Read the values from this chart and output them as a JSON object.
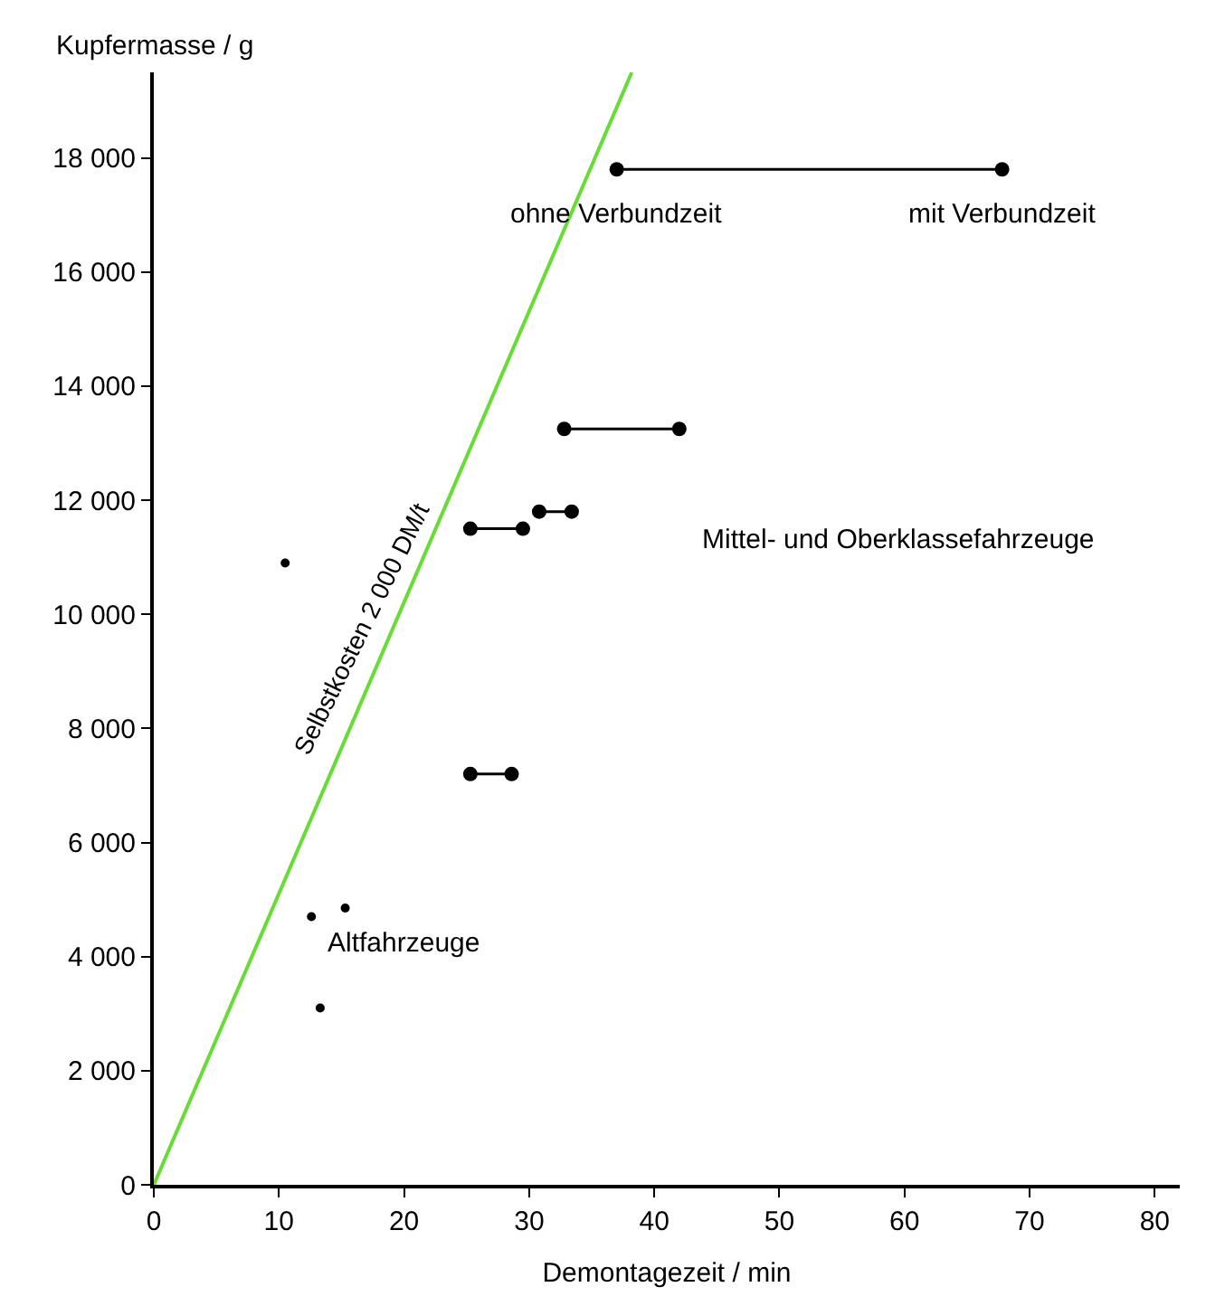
{
  "chart_data": {
    "type": "line",
    "xlabel": "Demontagezeit / min",
    "ylabel": "Kupfermasse / g",
    "xlim": [
      0,
      82
    ],
    "xticks": [
      0,
      10,
      20,
      30,
      40,
      50,
      60,
      70,
      80
    ],
    "ylim": [
      0,
      19500
    ],
    "yticks": [
      0,
      {
        "value": 2000,
        "label": "2 000"
      },
      {
        "value": 4000,
        "label": "4 000"
      },
      {
        "value": 6000,
        "label": "6 000"
      },
      {
        "value": 8000,
        "label": "8 000"
      },
      {
        "value": 10000,
        "label": "10 000"
      },
      {
        "value": 12000,
        "label": "12 000"
      },
      {
        "value": 14000,
        "label": "14 000"
      },
      {
        "value": 16000,
        "label": "16 000"
      },
      {
        "value": 18000,
        "label": "18 000"
      }
    ],
    "legend": false,
    "marker": "circle",
    "series": [
      {
        "name": "Selbstkosten 2 000 DM/t",
        "color": "#66dd33",
        "x": [
          0,
          38.2
        ],
        "values": [
          0,
          19500
        ],
        "marker": "none"
      },
      {
        "color": "#000000",
        "x": [
          37,
          67.8
        ],
        "values": [
          17800,
          17800
        ]
      },
      {
        "color": "#000000",
        "x": [
          32.8,
          42
        ],
        "values": [
          13250,
          13250
        ]
      },
      {
        "color": "#000000",
        "x": [
          30.8,
          33.4
        ],
        "values": [
          11800,
          11800
        ]
      },
      {
        "color": "#000000",
        "x": [
          25.3,
          29.5
        ],
        "values": [
          11500,
          11500
        ]
      },
      {
        "color": "#000000",
        "x": [
          25.3,
          28.6
        ],
        "values": [
          7200,
          7200
        ]
      },
      {
        "type": "scatter",
        "color": "#000000",
        "x": [
          10.5,
          12.6,
          15.3,
          13.3
        ],
        "values": [
          10900,
          4700,
          4850,
          3100
        ]
      }
    ],
    "annotations": [
      {
        "text": "ohne Verbundzeit",
        "x": 37,
        "y": 17800
      },
      {
        "text": "mit Verbundzeit",
        "x": 67.8,
        "y": 17800
      },
      "Mittel- und Oberklassefahrzeuge",
      "Altfahrzeuge"
    ]
  }
}
